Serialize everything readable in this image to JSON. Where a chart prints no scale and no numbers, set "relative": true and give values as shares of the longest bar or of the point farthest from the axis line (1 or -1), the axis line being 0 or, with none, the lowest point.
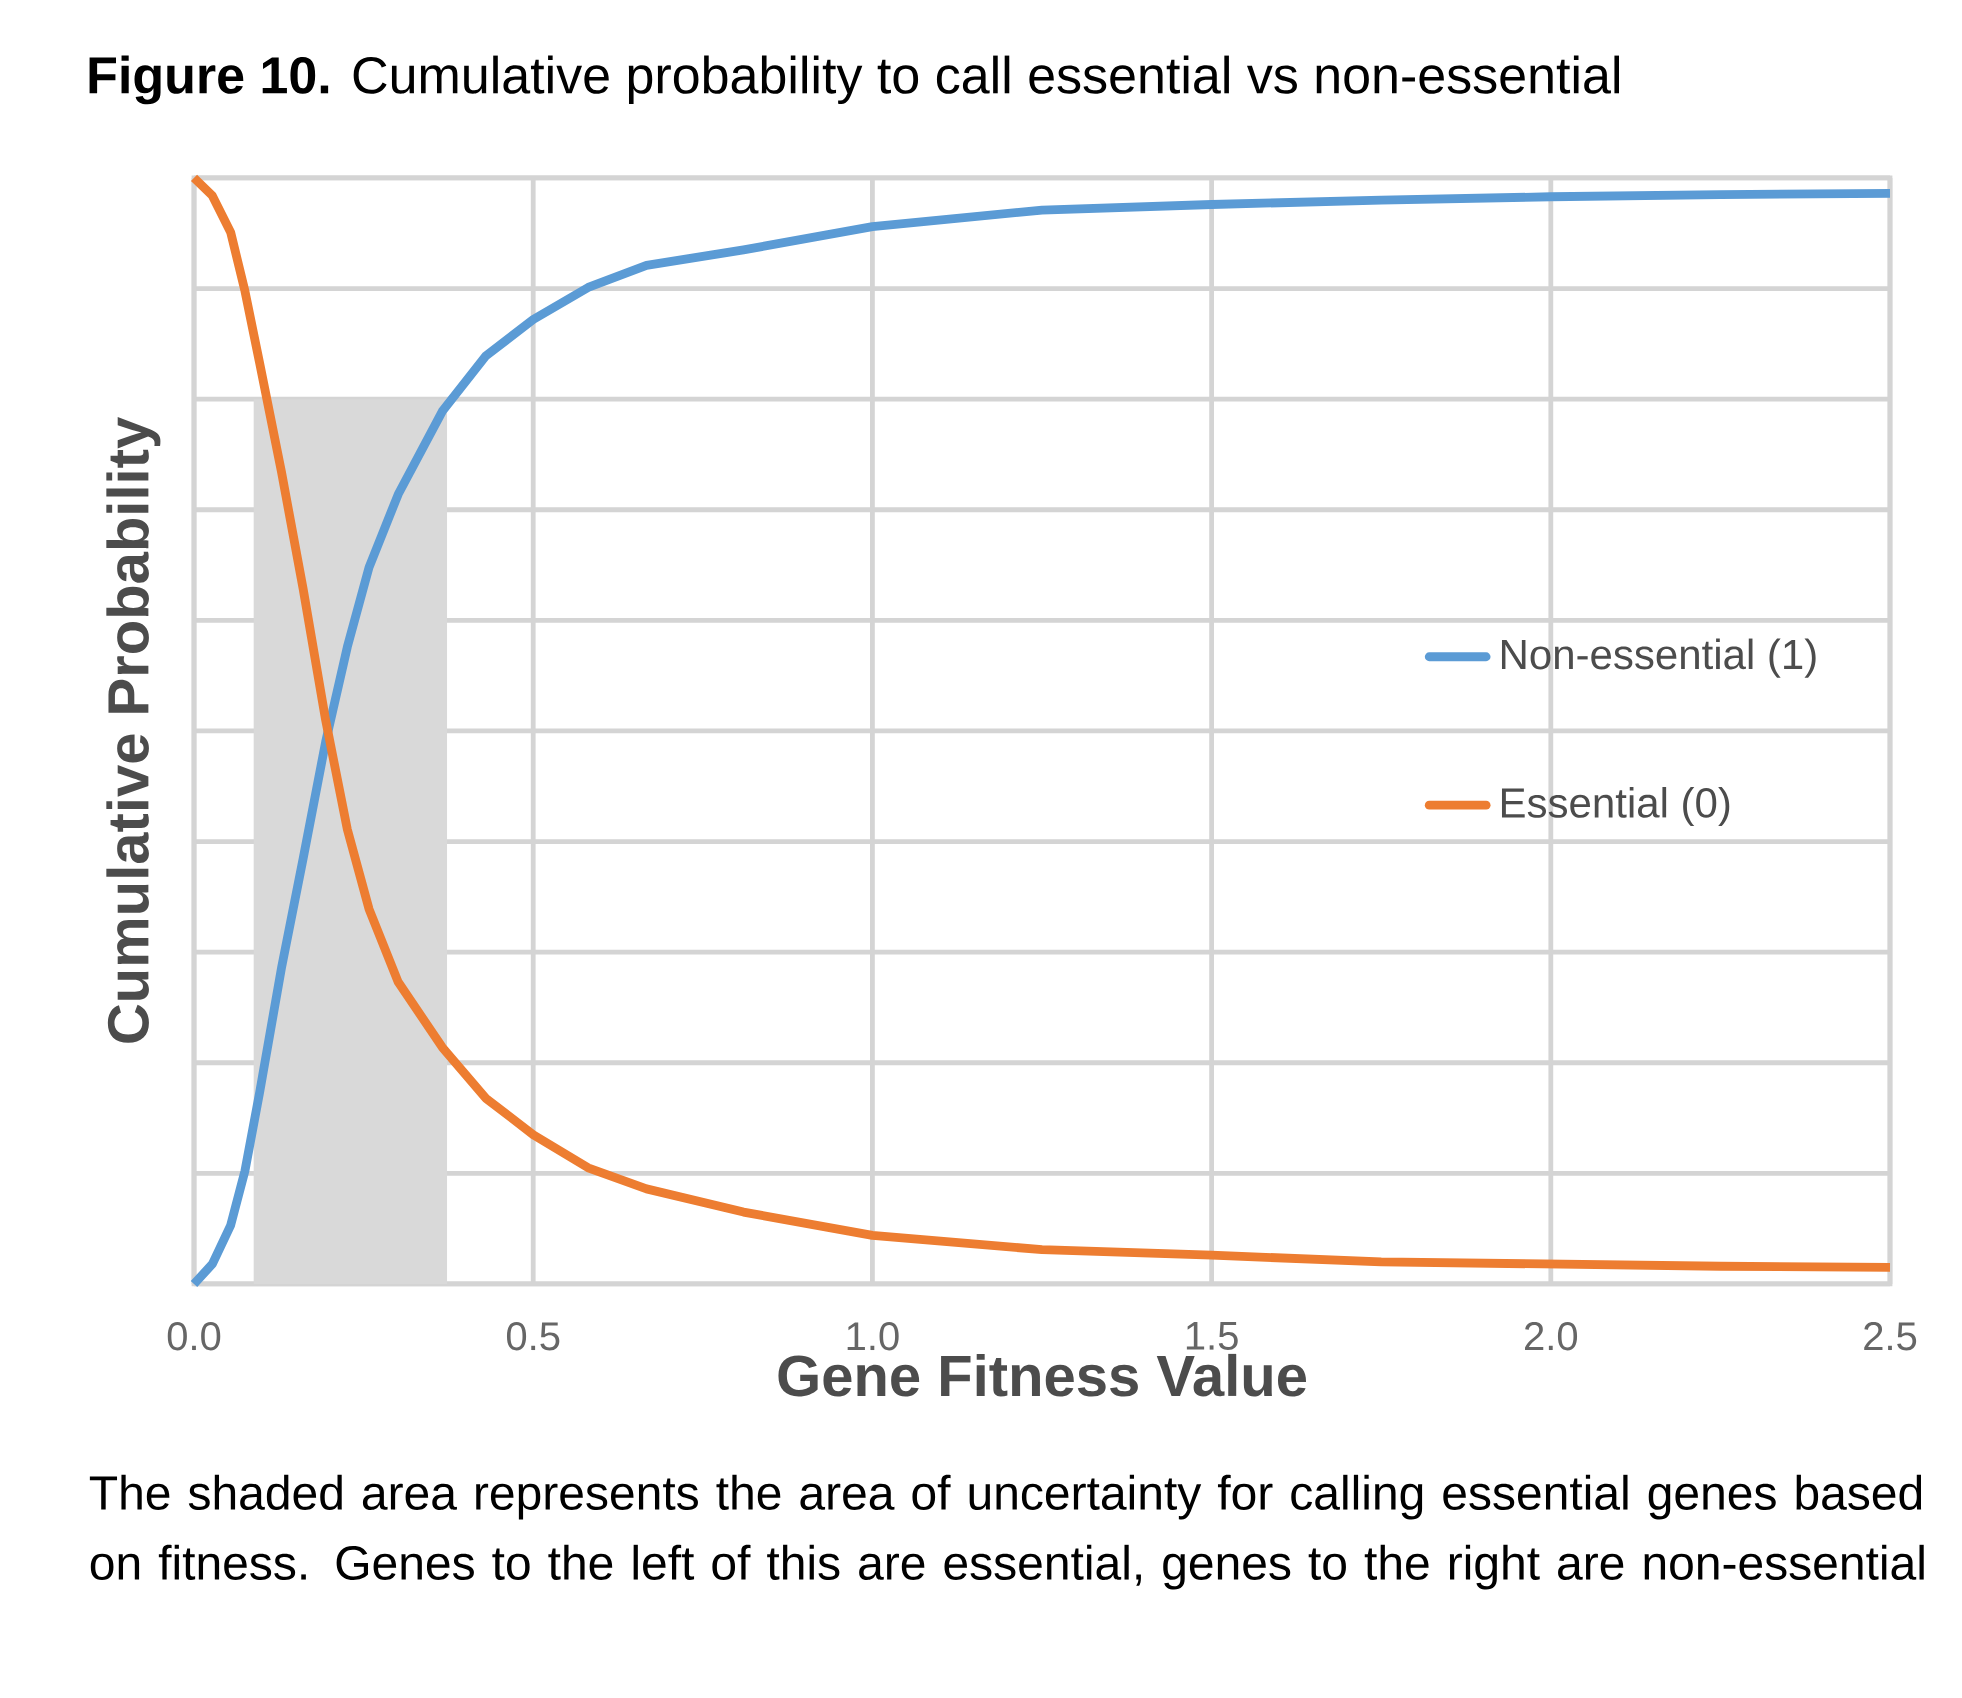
{
  "chart_data": {
    "type": "line",
    "title": "**Figure 10.** Cumulative probability to call essential vs non-essential",
    "xlabel": "Gene Fitness Value",
    "ylabel": "Cumulative Probability",
    "annotations": [
      "The shaded area represents the area of uncertainty for calling essential genes based on fitness. Genes to the left of this are essential, genes to the right are non-essential"
    ],
    "relative": true,
    "grid": true,
    "legend": "right",
    "xlim": [
      0,
      2.5
    ],
    "xticks": [
      {
        "value": 0,
        "label": "0.0"
      },
      0.5,
      {
        "value": 1,
        "label": "1.0"
      },
      1.5,
      {
        "value": 2,
        "label": "2.0"
      },
      2.5
    ],
    "series": [
      {
        "type": "area",
        "color": "#d9d9d9",
        "x": [
          0.088,
          0.373
        ],
        "values": [
          0.8,
          0.8
        ]
      },
      {
        "name": "Non-essential (1)",
        "color": "#5b9bd5",
        "x": [
          0,
          0.027,
          0.054,
          0.075,
          0.097,
          0.129,
          0.161,
          0.194,
          0.226,
          0.258,
          0.301,
          0.366,
          0.43,
          0.5,
          0.581,
          0.667,
          0.81,
          1.0,
          1.25,
          1.5,
          1.75,
          2.0,
          2.25,
          2.5
        ],
        "values": [
          0,
          0.018,
          0.053,
          0.102,
          0.174,
          0.286,
          0.385,
          0.49,
          0.576,
          0.648,
          0.714,
          0.789,
          0.839,
          0.872,
          0.901,
          0.921,
          0.935,
          0.956,
          0.971,
          0.976,
          0.98,
          0.983,
          0.985,
          0.986
        ]
      },
      {
        "name": "Essential (0)",
        "color": "#ed7d31",
        "x": [
          0,
          0.027,
          0.054,
          0.075,
          0.097,
          0.129,
          0.161,
          0.194,
          0.226,
          0.258,
          0.301,
          0.366,
          0.43,
          0.5,
          0.581,
          0.667,
          0.81,
          1.0,
          1.25,
          1.5,
          1.75,
          2.0,
          2.25,
          2.5
        ],
        "values": [
          1.0,
          0.984,
          0.951,
          0.898,
          0.832,
          0.734,
          0.628,
          0.51,
          0.411,
          0.339,
          0.273,
          0.214,
          0.168,
          0.135,
          0.105,
          0.086,
          0.065,
          0.044,
          0.031,
          0.026,
          0.02,
          0.018,
          0.016,
          0.015
        ]
      }
    ]
  }
}
